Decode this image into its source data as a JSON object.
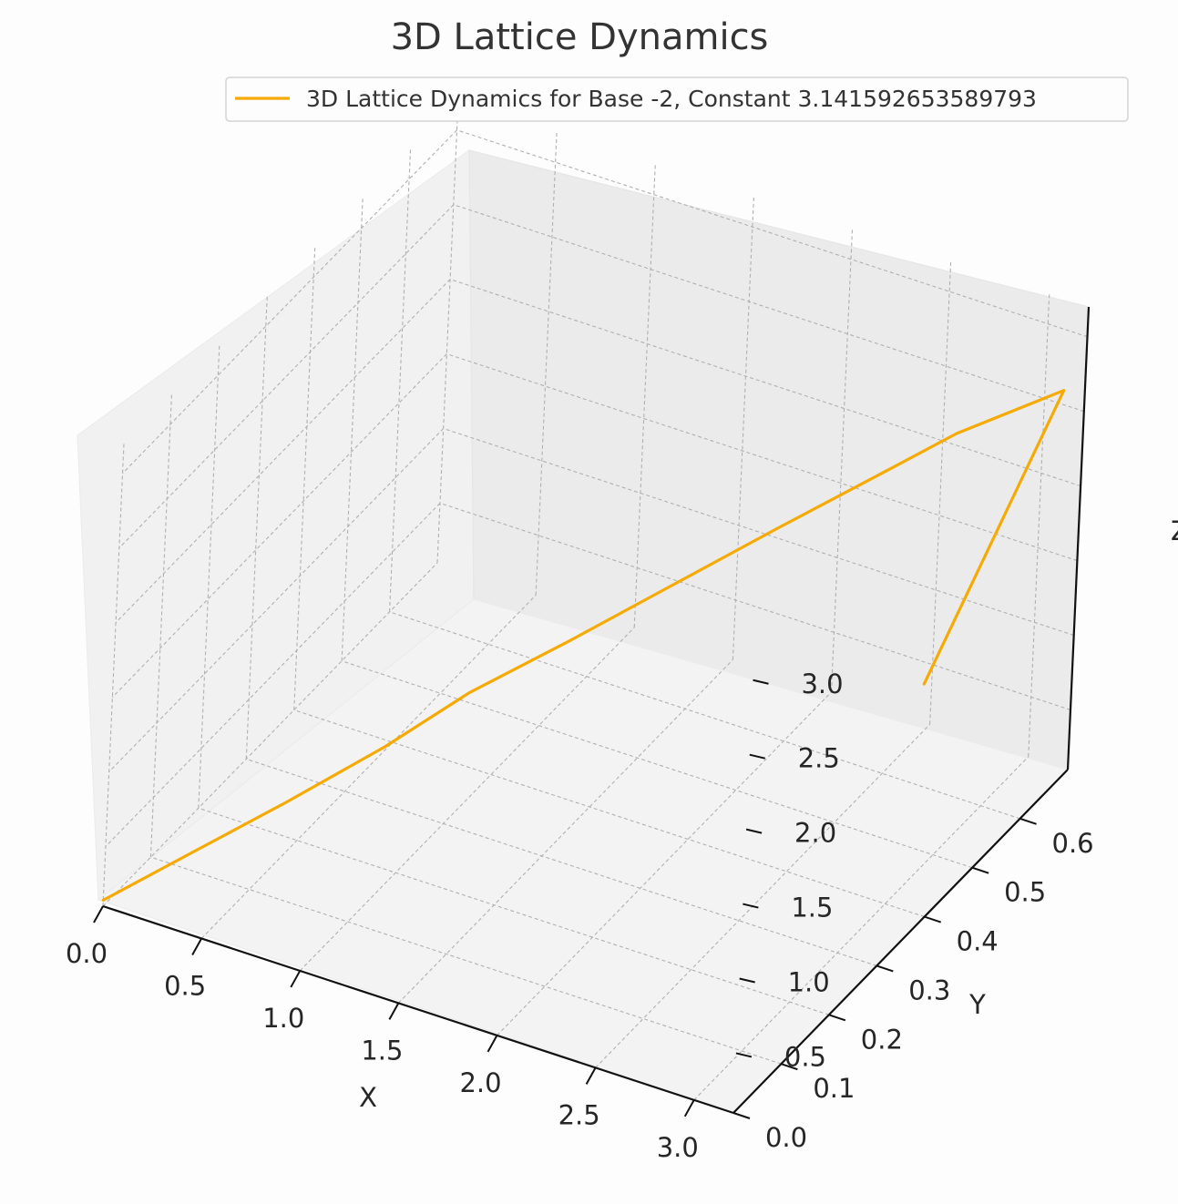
{
  "chart_data": {
    "type": "line3d",
    "title": "3D Lattice Dynamics",
    "xlabel": "X",
    "ylabel": "Y",
    "zlabel": "Z",
    "xlim": [
      0.0,
      3.2
    ],
    "ylim": [
      0.0,
      0.7
    ],
    "zlim": [
      0.1,
      3.2
    ],
    "x_ticks": [
      "0.0",
      "0.5",
      "1.0",
      "1.5",
      "2.0",
      "2.5",
      "3.0"
    ],
    "y_ticks": [
      "0.0",
      "0.1",
      "0.2",
      "0.3",
      "0.4",
      "0.5",
      "0.6"
    ],
    "z_ticks": [
      "0.5",
      "1.0",
      "1.5",
      "2.0",
      "2.5",
      "3.0"
    ],
    "grid": true,
    "legend_position": "top-right",
    "series": [
      {
        "name": "3D Lattice Dynamics for Base -2, Constant 3.141592653589793",
        "color": "#f5aa05",
        "points": [
          {
            "x": 0.0,
            "y": 0.0,
            "z": 0.14
          },
          {
            "x": 0.25,
            "y": 0.07,
            "z": 0.32
          },
          {
            "x": 0.55,
            "y": 0.15,
            "z": 0.54
          },
          {
            "x": 0.85,
            "y": 0.23,
            "z": 0.78
          },
          {
            "x": 1.1,
            "y": 0.3,
            "z": 1.02
          },
          {
            "x": 1.45,
            "y": 0.36,
            "z": 1.32
          },
          {
            "x": 1.8,
            "y": 0.43,
            "z": 1.62
          },
          {
            "x": 2.15,
            "y": 0.5,
            "z": 1.92
          },
          {
            "x": 2.5,
            "y": 0.57,
            "z": 2.21
          },
          {
            "x": 2.75,
            "y": 0.62,
            "z": 2.42
          },
          {
            "x": 3.14,
            "y": 0.68,
            "z": 2.68
          },
          {
            "x": 3.1,
            "y": 0.42,
            "z": 1.55
          }
        ]
      }
    ]
  }
}
